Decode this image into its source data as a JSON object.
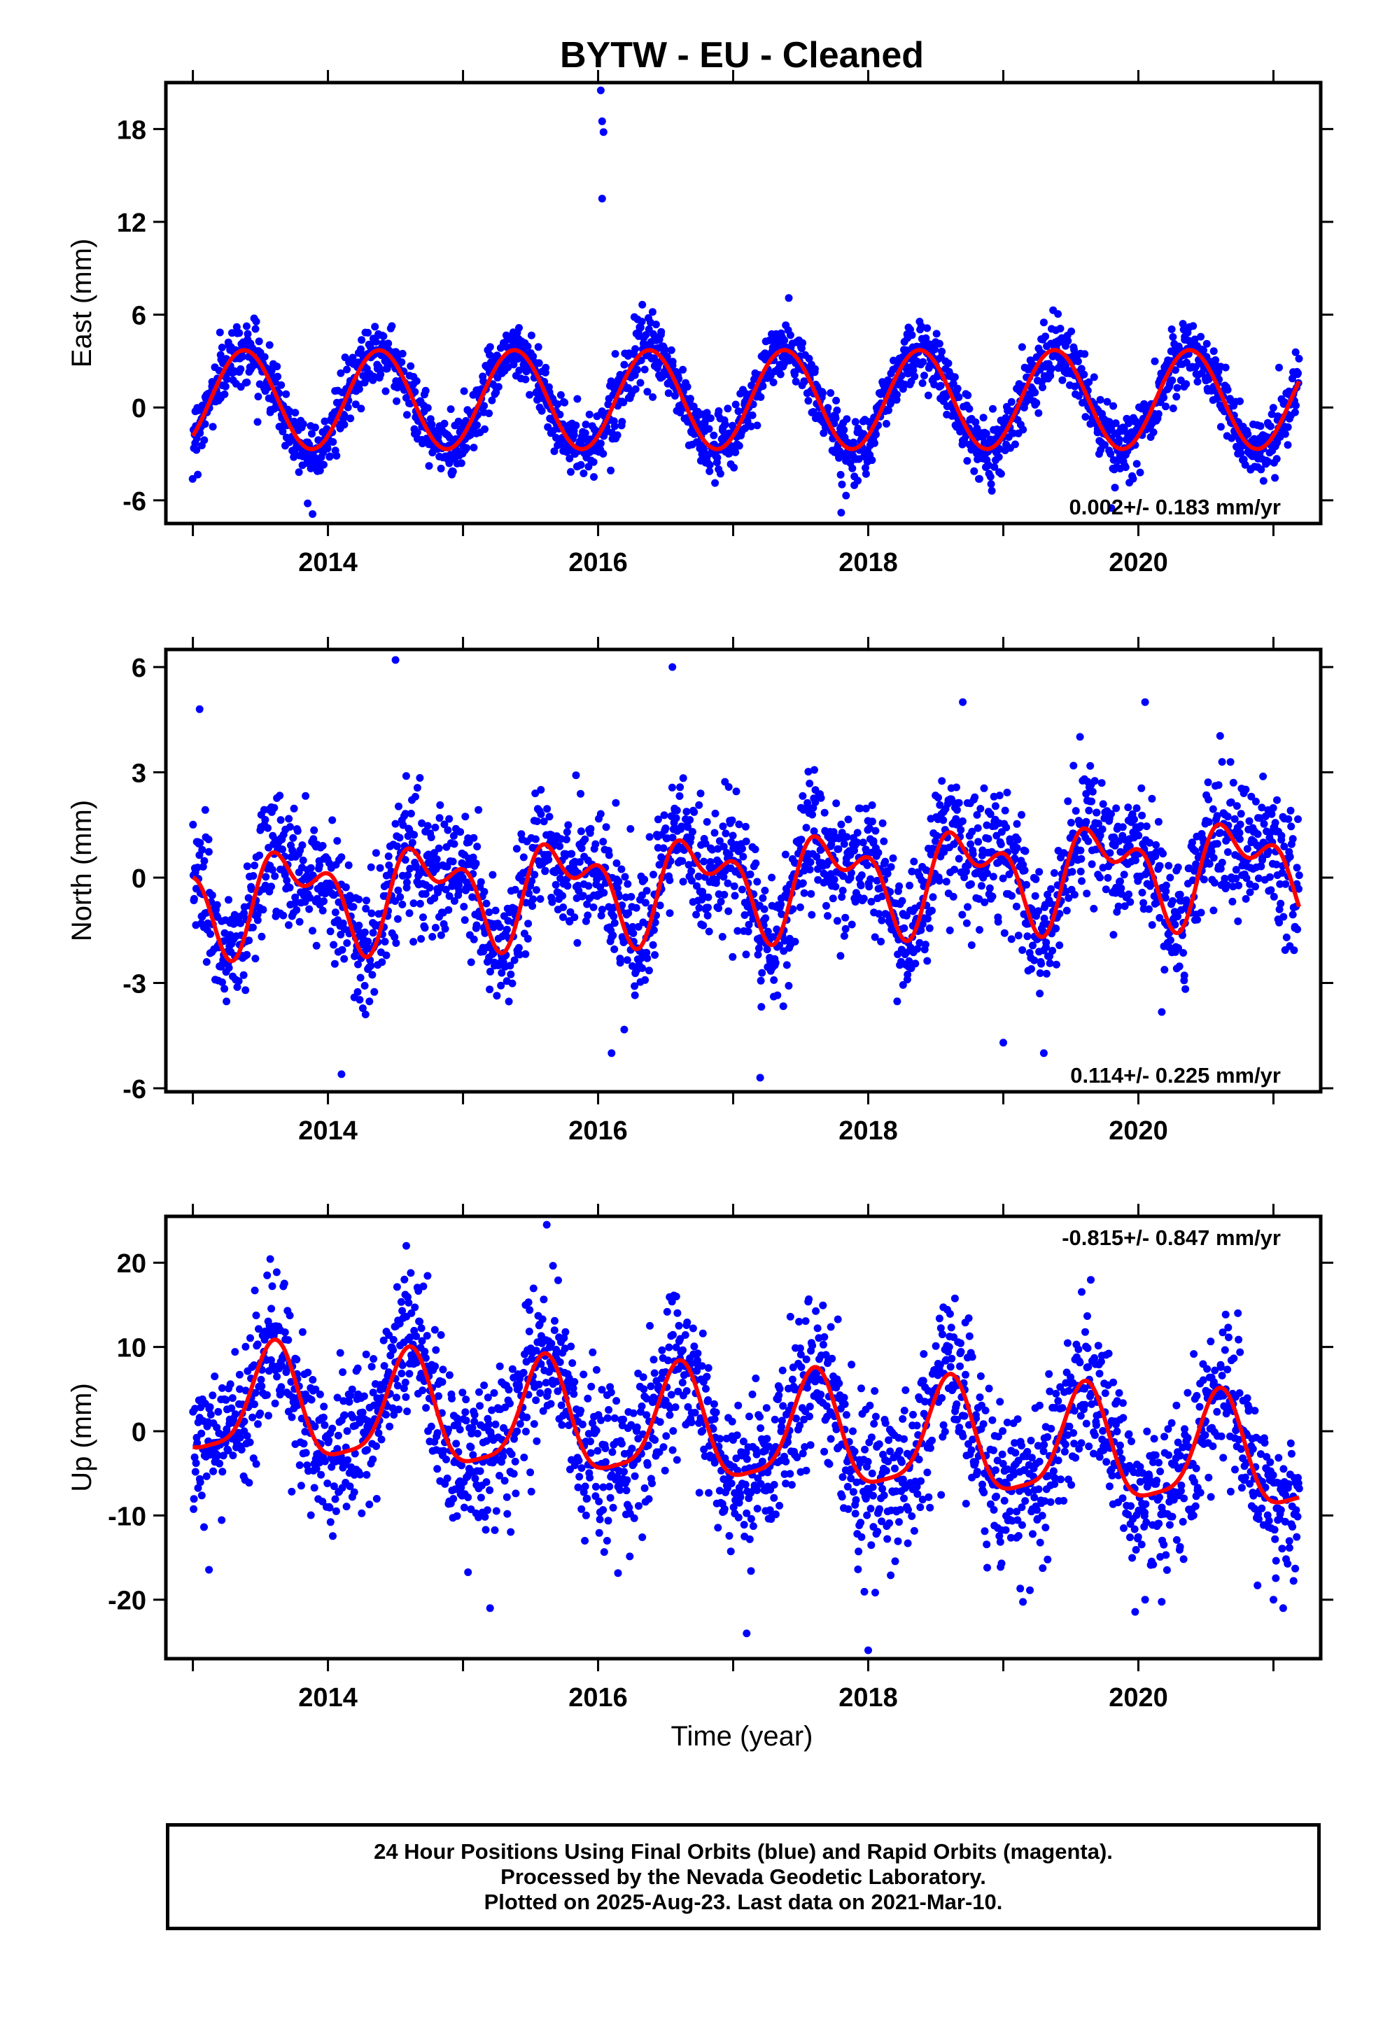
{
  "title": "BYTW  - EU - Cleaned",
  "xlabel": "Time (year)",
  "footer": {
    "line1": "24 Hour Positions Using Final Orbits (blue) and Rapid Orbits (magenta).",
    "line2": "Processed by the Nevada Geodetic Laboratory.",
    "line3": "Plotted on 2025-Aug-23. Last data on 2021-Mar-10."
  },
  "colors": {
    "final_orbits": "#0000ff",
    "rapid_orbits": "#ff00ff",
    "model_fit": "#ff0000"
  },
  "chart_data": [
    {
      "type": "scatter",
      "component": "East",
      "ylabel": "East (mm)",
      "xlim": [
        2012.8,
        2021.35
      ],
      "ylim": [
        -7.5,
        21
      ],
      "xticks": [
        "2014",
        "2016",
        "2018",
        "2020"
      ],
      "yticks": [
        "-6",
        "0",
        "6",
        "12",
        "18"
      ],
      "rate_text": "0.002+/- 0.183 mm/yr",
      "series": [
        {
          "values": {
            "x_start": 2013.0,
            "x_end": 2021.19,
            "annual_amplitude": 3.2,
            "annual_peak": 2013.38,
            "semiannual_amplitude": 0.0,
            "semiannual_peak": 2013.38,
            "trend_mm_per_yr": 0.002,
            "offset": 0.5,
            "scatter": 1.0,
            "outliers": [
              [
                2016.02,
                20.5
              ],
              [
                2016.03,
                18.5
              ],
              [
                2016.04,
                17.8
              ],
              [
                2016.03,
                13.5
              ],
              [
                2013.85,
                -6.2
              ],
              [
                2017.8,
                -6.8
              ],
              [
                2019.8,
                -6.5
              ]
            ]
          }
        },
        {
          "values": {
            "annual_amplitude": 3.2,
            "annual_peak": 2013.38,
            "semiannual_amplitude": 0.0,
            "semiannual_peak": 2013.38,
            "trend_mm_per_yr": 0.002,
            "offset": 0.5
          }
        }
      ]
    },
    {
      "type": "scatter",
      "component": "North",
      "ylabel": "North (mm)",
      "xlim": [
        2012.8,
        2021.35
      ],
      "ylim": [
        -6.1,
        6.5
      ],
      "xticks": [
        "2014",
        "2016",
        "2018",
        "2020"
      ],
      "yticks": [
        "-6",
        "-3",
        "0",
        "3",
        "6"
      ],
      "rate_text": "0.114+/- 0.225 mm/yr",
      "series": [
        {
          "values": {
            "x_start": 2013.0,
            "x_end": 2021.19,
            "annual_amplitude": 1.1,
            "annual_peak": 2013.75,
            "semiannual_amplitude": 0.75,
            "semiannual_peak": 2013.05,
            "trend_mm_per_yr": 0.114,
            "offset": -0.6,
            "scatter": 0.9,
            "outliers": [
              [
                2014.5,
                6.2
              ],
              [
                2016.55,
                6.0
              ],
              [
                2013.05,
                4.8
              ],
              [
                2018.7,
                5.0
              ],
              [
                2020.05,
                5.0
              ],
              [
                2014.1,
                -5.6
              ],
              [
                2016.1,
                -5.0
              ],
              [
                2017.2,
                -5.7
              ],
              [
                2019.0,
                -4.7
              ],
              [
                2019.3,
                -5.0
              ]
            ]
          }
        },
        {
          "values": {
            "annual_amplitude": 1.1,
            "annual_peak": 2013.75,
            "semiannual_amplitude": 0.75,
            "semiannual_peak": 2013.05,
            "trend_mm_per_yr": 0.114,
            "offset": -0.6
          }
        }
      ]
    },
    {
      "type": "scatter",
      "component": "Up",
      "ylabel": "Up (mm)",
      "xlim": [
        2012.8,
        2021.35
      ],
      "ylim": [
        -27,
        25.5
      ],
      "xticks": [
        "2014",
        "2016",
        "2018",
        "2020"
      ],
      "yticks": [
        "-20",
        "-10",
        "0",
        "10",
        "20"
      ],
      "rate_text": "-0.815+/- 0.847 mm/yr",
      "series": [
        {
          "values": {
            "x_start": 2013.0,
            "x_end": 2021.19,
            "annual_amplitude": 6.5,
            "annual_peak": 2013.6,
            "semiannual_amplitude": 1.6,
            "semiannual_peak": 2013.62,
            "trend_mm_per_yr": -0.815,
            "offset": 3.3,
            "scatter": 4.5,
            "outliers": [
              [
                2015.62,
                24.5
              ],
              [
                2014.58,
                22.0
              ],
              [
                2013.55,
                18.5
              ],
              [
                2017.1,
                -24.0
              ],
              [
                2018.0,
                -26.0
              ],
              [
                2015.2,
                -21.0
              ],
              [
                2020.05,
                -20.0
              ],
              [
                2021.0,
                -20.0
              ]
            ]
          }
        },
        {
          "values": {
            "annual_amplitude": 6.5,
            "annual_peak": 2013.6,
            "semiannual_amplitude": 1.6,
            "semiannual_peak": 2013.62,
            "trend_mm_per_yr": -0.815,
            "offset": 3.3
          }
        }
      ]
    }
  ]
}
